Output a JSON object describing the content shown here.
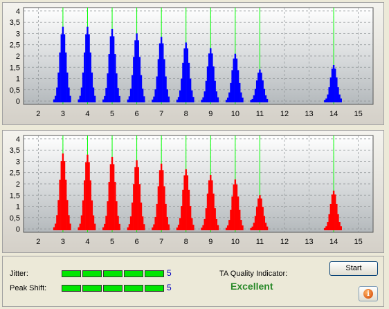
{
  "chart_data": [
    {
      "type": "bar",
      "title": "",
      "xlabel": "",
      "ylabel": "",
      "xlim": [
        1.4,
        15.6
      ],
      "ylim": [
        -0.15,
        4.15
      ],
      "x_ticks": [
        "2",
        "3",
        "4",
        "5",
        "6",
        "7",
        "8",
        "9",
        "10",
        "11",
        "12",
        "13",
        "14",
        "15"
      ],
      "y_ticks": [
        "0",
        "0,5",
        "1",
        "1,5",
        "2",
        "2,5",
        "3",
        "3,5",
        "4"
      ],
      "grid": true,
      "reference_lines_x": [
        3,
        4,
        5,
        6,
        7,
        8,
        9,
        10,
        11,
        14
      ],
      "bar_color": "#0000ff",
      "peaks": [
        {
          "center": 3,
          "height": 3.3
        },
        {
          "center": 4,
          "height": 3.3
        },
        {
          "center": 5,
          "height": 3.2
        },
        {
          "center": 6,
          "height": 3.0
        },
        {
          "center": 7,
          "height": 2.85
        },
        {
          "center": 8,
          "height": 2.6
        },
        {
          "center": 9,
          "height": 2.35
        },
        {
          "center": 10,
          "height": 2.1
        },
        {
          "center": 11,
          "height": 1.4
        },
        {
          "center": 14,
          "height": 1.6
        }
      ]
    },
    {
      "type": "bar",
      "title": "",
      "xlabel": "",
      "ylabel": "",
      "xlim": [
        1.4,
        15.6
      ],
      "ylim": [
        -0.15,
        4.15
      ],
      "x_ticks": [
        "2",
        "3",
        "4",
        "5",
        "6",
        "7",
        "8",
        "9",
        "10",
        "11",
        "12",
        "13",
        "14",
        "15"
      ],
      "y_ticks": [
        "0",
        "0,5",
        "1",
        "1,5",
        "2",
        "2,5",
        "3",
        "3,5",
        "4"
      ],
      "grid": true,
      "reference_lines_x": [
        3,
        4,
        5,
        6,
        7,
        8,
        9,
        10,
        11,
        14
      ],
      "bar_color": "#ff0000",
      "peaks": [
        {
          "center": 3,
          "height": 3.35
        },
        {
          "center": 4,
          "height": 3.3
        },
        {
          "center": 5,
          "height": 3.2
        },
        {
          "center": 6,
          "height": 3.05
        },
        {
          "center": 7,
          "height": 2.9
        },
        {
          "center": 8,
          "height": 2.65
        },
        {
          "center": 9,
          "height": 2.4
        },
        {
          "center": 10,
          "height": 2.2
        },
        {
          "center": 11,
          "height": 1.5
        },
        {
          "center": 14,
          "height": 1.7
        }
      ]
    }
  ],
  "metrics": {
    "jitter_label": "Jitter:",
    "jitter_value": "5",
    "jitter_level": 5,
    "peak_shift_label": "Peak Shift:",
    "peak_shift_value": "5",
    "peak_shift_level": 5,
    "meter_max": 5
  },
  "quality": {
    "label": "TA Quality Indicator:",
    "value": "Excellent"
  },
  "buttons": {
    "start_label": "Start",
    "info_icon": "info-icon"
  },
  "colors": {
    "meter_fill": "#00e600",
    "value_text": "#0000c0",
    "quality_text": "#2a8a2a",
    "reference_line": "#00ff00"
  }
}
